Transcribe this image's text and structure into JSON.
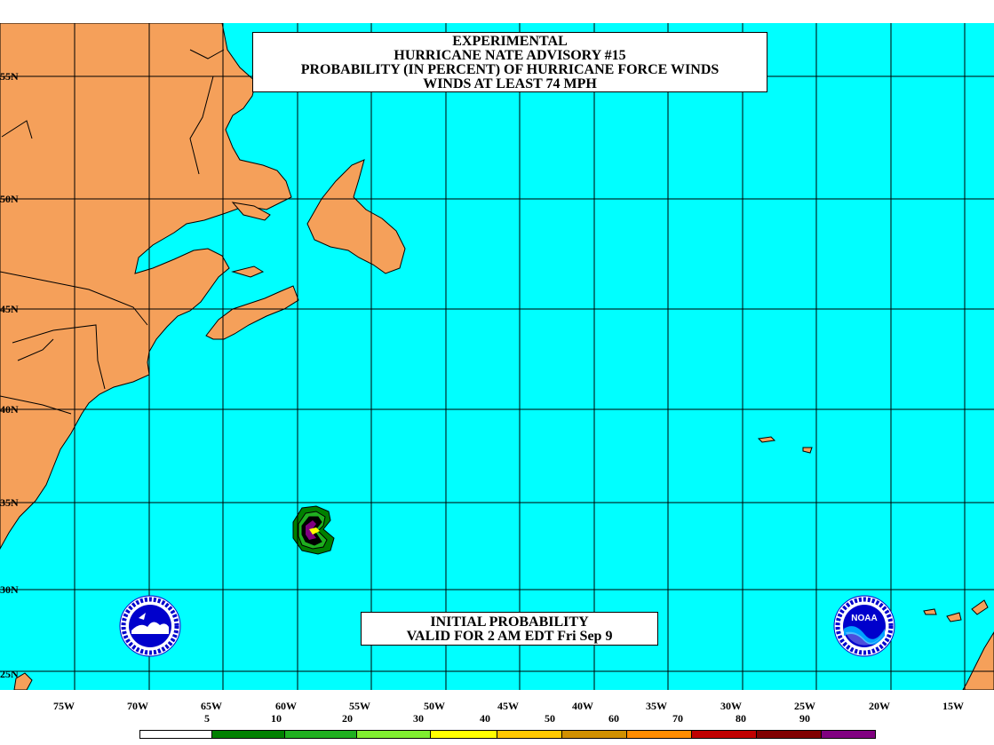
{
  "title": {
    "line1": "EXPERIMENTAL",
    "line2": "HURRICANE NATE ADVISORY #15",
    "line3": "PROBABILITY (IN PERCENT) OF HURRICANE FORCE WINDS",
    "line4": "WINDS AT LEAST 74 MPH"
  },
  "valid": {
    "line1": "INITIAL PROBABILITY",
    "line2": "VALID FOR 2 AM EDT Fri Sep 9"
  },
  "lat_labels": [
    "55N",
    "50N",
    "45N",
    "40N",
    "35N",
    "30N",
    "25N"
  ],
  "lon_labels": [
    "75W",
    "70W",
    "65W",
    "60W",
    "55W",
    "50W",
    "45W",
    "40W",
    "35W",
    "30W",
    "25W",
    "20W",
    "15W"
  ],
  "legend": {
    "labels": [
      "5",
      "10",
      "20",
      "30",
      "40",
      "50",
      "60",
      "70",
      "80",
      "90"
    ],
    "colors": [
      "#ffffff",
      "#008000",
      "#20b020",
      "#80ee30",
      "#ffff00",
      "#ffc800",
      "#d09000",
      "#ff8c00",
      "#c00000",
      "#800000",
      "#800080"
    ]
  },
  "colors": {
    "ocean": "#00ffff",
    "land": "#f5a05a",
    "grid": "#000000"
  },
  "logos": {
    "left": "nws-logo",
    "right": "noaa-logo",
    "noaa_text": "NOAA"
  }
}
